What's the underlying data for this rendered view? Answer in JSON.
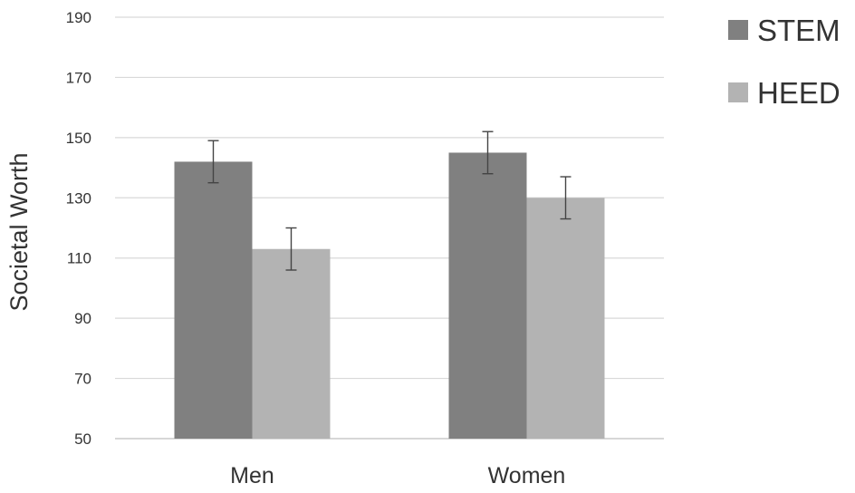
{
  "chart_data": {
    "type": "bar",
    "title": "",
    "xlabel": "",
    "ylabel": "Societal Worth",
    "ylim": [
      50,
      190
    ],
    "yticks": [
      50,
      70,
      90,
      110,
      130,
      150,
      170,
      190
    ],
    "grid": true,
    "legend_position": "top-right",
    "categories": [
      "Men",
      "Women"
    ],
    "series": [
      {
        "name": "STEM",
        "color": "#808080",
        "values": [
          142,
          145
        ],
        "error": [
          7,
          7
        ]
      },
      {
        "name": "HEED",
        "color": "#b3b3b3",
        "values": [
          113,
          130
        ],
        "error": [
          7,
          7
        ]
      }
    ]
  }
}
